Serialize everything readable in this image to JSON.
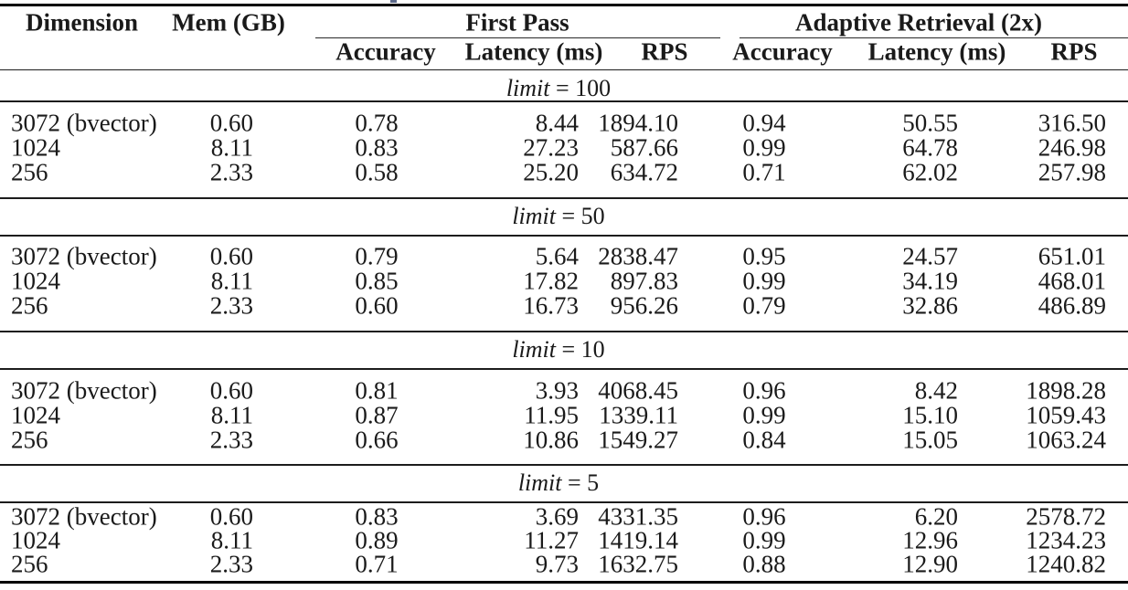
{
  "colors": {
    "text": "#1a1a1a",
    "rule": "#000000",
    "background": "#ffffff"
  },
  "table": {
    "header": {
      "dimension": "Dimension",
      "mem": "Mem (GB)",
      "groups": [
        {
          "label": "First Pass"
        },
        {
          "label": "Adaptive Retrieval (2x)"
        }
      ],
      "subcolumns": [
        "Accuracy",
        "Latency (ms)",
        "RPS",
        "Accuracy",
        "Latency (ms)",
        "RPS"
      ]
    },
    "sections": [
      {
        "limit_var": "limit",
        "limit_eq": "= 100",
        "rows": [
          [
            "3072 (bvector)",
            "0.60",
            "0.78",
            "8.44",
            "1894.10",
            "0.94",
            "50.55",
            "316.50"
          ],
          [
            "1024",
            "8.11",
            "0.83",
            "27.23",
            "587.66",
            "0.99",
            "64.78",
            "246.98"
          ],
          [
            "256",
            "2.33",
            "0.58",
            "25.20",
            "634.72",
            "0.71",
            "62.02",
            "257.98"
          ]
        ]
      },
      {
        "limit_var": "limit",
        "limit_eq": "= 50",
        "rows": [
          [
            "3072 (bvector)",
            "0.60",
            "0.79",
            "5.64",
            "2838.47",
            "0.95",
            "24.57",
            "651.01"
          ],
          [
            "1024",
            "8.11",
            "0.85",
            "17.82",
            "897.83",
            "0.99",
            "34.19",
            "468.01"
          ],
          [
            "256",
            "2.33",
            "0.60",
            "16.73",
            "956.26",
            "0.79",
            "32.86",
            "486.89"
          ]
        ]
      },
      {
        "limit_var": "limit",
        "limit_eq": "= 10",
        "rows": [
          [
            "3072 (bvector)",
            "0.60",
            "0.81",
            "3.93",
            "4068.45",
            "0.96",
            "8.42",
            "1898.28"
          ],
          [
            "1024",
            "8.11",
            "0.87",
            "11.95",
            "1339.11",
            "0.99",
            "15.10",
            "1059.43"
          ],
          [
            "256",
            "2.33",
            "0.66",
            "10.86",
            "1549.27",
            "0.84",
            "15.05",
            "1063.24"
          ]
        ]
      },
      {
        "limit_var": "limit",
        "limit_eq": "= 5",
        "rows": [
          [
            "3072 (bvector)",
            "0.60",
            "0.83",
            "3.69",
            "4331.35",
            "0.96",
            "6.20",
            "2578.72"
          ],
          [
            "1024",
            "8.11",
            "0.89",
            "11.27",
            "1419.14",
            "0.99",
            "12.96",
            "1234.23"
          ],
          [
            "256",
            "2.33",
            "0.71",
            "9.73",
            "1632.75",
            "0.88",
            "12.90",
            "1240.82"
          ]
        ]
      }
    ]
  }
}
